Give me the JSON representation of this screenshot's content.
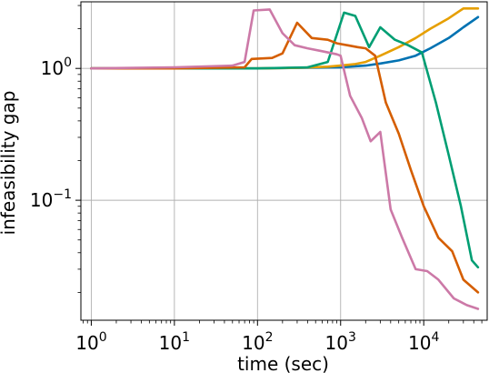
{
  "chart_data": {
    "type": "line",
    "title": "",
    "xlabel": "time (sec)",
    "ylabel": "infeasibility gap",
    "xscale": "log",
    "yscale": "log",
    "xlim": [
      0.75,
      58000
    ],
    "ylim": [
      0.0123,
      3.2
    ],
    "grid": true,
    "legend": "none",
    "xticks": [
      1,
      10,
      100,
      1000,
      10000
    ],
    "xtick_labels": [
      {
        "base": "10",
        "exp": "0"
      },
      {
        "base": "10",
        "exp": "1"
      },
      {
        "base": "10",
        "exp": "2"
      },
      {
        "base": "10",
        "exp": "3"
      },
      {
        "base": "10",
        "exp": "4"
      }
    ],
    "yticks": [
      0.1,
      1
    ],
    "ytick_labels": [
      {
        "base": "10",
        "exp": "−1"
      },
      {
        "base": "10",
        "exp": "0"
      }
    ],
    "series": [
      {
        "color": "#0072b2",
        "x": [
          1,
          10,
          100,
          1000,
          2000,
          3000,
          5000,
          8000,
          12000,
          20000,
          30000,
          45000
        ],
        "y": [
          1.0,
          1.0,
          1.0,
          1.02,
          1.05,
          1.09,
          1.15,
          1.25,
          1.42,
          1.7,
          2.05,
          2.45
        ]
      },
      {
        "color": "#e69f00",
        "x": [
          1,
          10,
          100,
          300,
          700,
          1000,
          1500,
          2000,
          3000,
          5000,
          8000,
          12000,
          20000,
          30000,
          45000
        ],
        "y": [
          1.0,
          1.0,
          1.0,
          1.01,
          1.03,
          1.05,
          1.08,
          1.12,
          1.25,
          1.45,
          1.7,
          2.0,
          2.4,
          2.85,
          2.85
        ]
      },
      {
        "color": "#009e73",
        "x": [
          1,
          10,
          100,
          400,
          700,
          1100,
          1500,
          2200,
          3000,
          4500,
          6500,
          9500,
          14000,
          20000,
          28000,
          38000,
          45000
        ],
        "y": [
          1.0,
          1.0,
          1.0,
          1.02,
          1.12,
          2.65,
          2.5,
          1.45,
          2.05,
          1.65,
          1.5,
          1.32,
          0.55,
          0.22,
          0.09,
          0.035,
          0.031
        ]
      },
      {
        "color": "#d55e00",
        "x": [
          1,
          10,
          70,
          85,
          150,
          200,
          300,
          450,
          700,
          900,
          1200,
          1600,
          2000,
          2600,
          3500,
          5000,
          7000,
          10000,
          15000,
          22000,
          30000,
          45000
        ],
        "y": [
          1.0,
          1.0,
          1.02,
          1.18,
          1.2,
          1.3,
          2.22,
          1.7,
          1.65,
          1.55,
          1.5,
          1.45,
          1.42,
          1.25,
          0.55,
          0.32,
          0.17,
          0.09,
          0.052,
          0.041,
          0.025,
          0.02
        ]
      },
      {
        "color": "#cc79a7",
        "x": [
          1,
          10,
          50,
          70,
          90,
          140,
          200,
          280,
          400,
          600,
          900,
          1000,
          1300,
          1800,
          2300,
          3000,
          4000,
          5500,
          8000,
          11000,
          15000,
          23000,
          33000,
          45000
        ],
        "y": [
          1.0,
          1.02,
          1.05,
          1.12,
          2.75,
          2.8,
          1.85,
          1.5,
          1.42,
          1.35,
          1.28,
          1.25,
          0.62,
          0.42,
          0.28,
          0.33,
          0.085,
          0.052,
          0.03,
          0.029,
          0.025,
          0.018,
          0.016,
          0.015
        ]
      }
    ]
  }
}
